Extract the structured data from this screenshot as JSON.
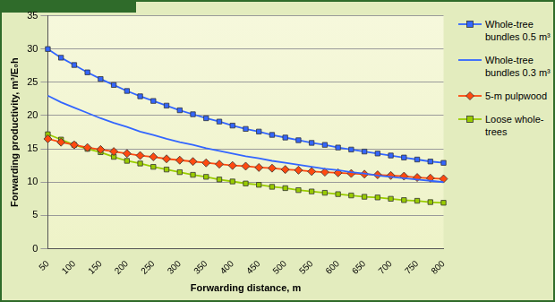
{
  "chart_data": {
    "type": "line",
    "x_label": "Forwarding distance, m",
    "y_label": "Forwarding productivity, m³/E₀h",
    "categories": [
      50,
      null,
      100,
      null,
      150,
      null,
      200,
      null,
      250,
      null,
      300,
      null,
      350,
      null,
      400,
      null,
      450,
      null,
      500,
      null,
      550,
      null,
      600,
      null,
      650,
      null,
      700,
      null,
      750,
      null,
      800
    ],
    "series": [
      {
        "name": "Whole-tree bundles 0.5 m³",
        "color": "#3366ff",
        "marker": "square",
        "line_style": "solid",
        "values": [
          30.0,
          28.7,
          27.6,
          26.5,
          25.5,
          24.6,
          23.7,
          22.9,
          22.2,
          21.5,
          20.8,
          20.2,
          19.6,
          19.1,
          18.5,
          18.0,
          17.6,
          17.1,
          16.7,
          16.3,
          15.9,
          15.6,
          15.2,
          14.9,
          14.6,
          14.3,
          14.0,
          13.7,
          13.4,
          13.1,
          12.9
        ]
      },
      {
        "name": "Whole-tree bundles 0.3 m³",
        "color": "#3366ff",
        "marker": "none",
        "line_style": "solid",
        "values": [
          23.0,
          22.0,
          21.2,
          20.4,
          19.6,
          18.9,
          18.3,
          17.6,
          17.1,
          16.5,
          16.0,
          15.6,
          15.1,
          14.7,
          14.3,
          13.9,
          13.6,
          13.2,
          12.9,
          12.6,
          12.3,
          12.0,
          11.8,
          11.5,
          11.3,
          11.0,
          10.8,
          10.6,
          10.4,
          10.2,
          10.0
        ]
      },
      {
        "name": "5-m pulpwood",
        "color": "#ff4a10",
        "marker": "diamond",
        "line_style": "solid",
        "values": [
          16.5,
          16.0,
          15.6,
          15.2,
          14.9,
          14.6,
          14.3,
          14.0,
          13.8,
          13.5,
          13.3,
          13.1,
          12.9,
          12.7,
          12.5,
          12.4,
          12.2,
          12.1,
          11.9,
          11.8,
          11.6,
          11.5,
          11.4,
          11.3,
          11.2,
          11.1,
          11.0,
          10.9,
          10.7,
          10.6,
          10.5
        ]
      },
      {
        "name": "Loose whole-trees",
        "color": "#99cc00",
        "marker": "square",
        "line_style": "solid",
        "values": [
          17.2,
          16.4,
          15.6,
          15.0,
          14.5,
          13.8,
          13.2,
          12.8,
          12.3,
          11.9,
          11.5,
          11.1,
          10.8,
          10.4,
          10.1,
          9.8,
          9.6,
          9.3,
          9.1,
          8.8,
          8.6,
          8.4,
          8.2,
          8.0,
          7.8,
          7.7,
          7.5,
          7.3,
          7.2,
          7.0,
          6.9
        ]
      }
    ],
    "ylim": [
      0,
      35
    ],
    "yticks": [
      0,
      5,
      10,
      15,
      20,
      25,
      30,
      35
    ],
    "grid": true,
    "legend": "right"
  }
}
